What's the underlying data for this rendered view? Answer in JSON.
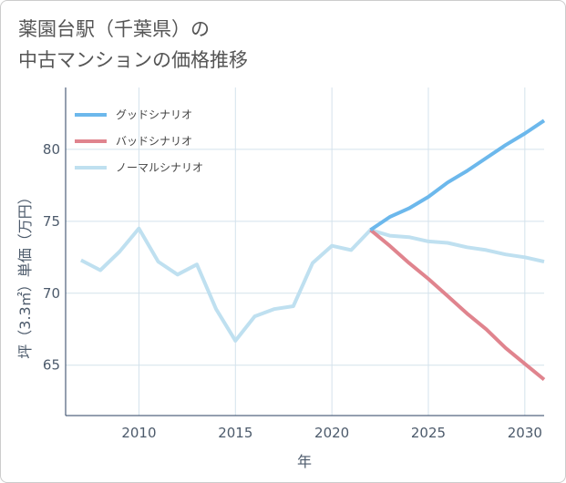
{
  "title": {
    "line1": "薬園台駅（千葉県）の",
    "line2": "中古マンションの価格推移"
  },
  "chart_data": {
    "type": "line",
    "title": "薬園台駅（千葉県）の中古マンションの価格推移",
    "xlabel": "年",
    "ylabel": "坪（3.3㎡）単価（万円）",
    "xlim": [
      2006.2,
      2031
    ],
    "ylim": [
      61.5,
      84.3
    ],
    "xticks": [
      2010,
      2015,
      2020,
      2025,
      2030
    ],
    "yticks": [
      65,
      70,
      75,
      80
    ],
    "grid": true,
    "legend_position": "top-left",
    "series": [
      {
        "name": "グッドシナリオ",
        "color": "#6cb8ec",
        "x": [
          2022,
          2023,
          2024,
          2025,
          2026,
          2027,
          2028,
          2029,
          2030,
          2031
        ],
        "values": [
          74.4,
          75.3,
          75.9,
          76.7,
          77.7,
          78.5,
          79.4,
          80.3,
          81.1,
          82.0
        ]
      },
      {
        "name": "バッドシナリオ",
        "color": "#e0848e",
        "x": [
          2022,
          2023,
          2024,
          2025,
          2026,
          2027,
          2028,
          2029,
          2030,
          2031
        ],
        "values": [
          74.4,
          73.3,
          72.1,
          71.0,
          69.8,
          68.6,
          67.5,
          66.2,
          65.1,
          64.0
        ]
      },
      {
        "name": "ノーマルシナリオ",
        "color": "#bfe0f0",
        "x": [
          2007,
          2008,
          2009,
          2010,
          2011,
          2012,
          2013,
          2014,
          2015,
          2016,
          2017,
          2018,
          2019,
          2020,
          2021,
          2022,
          2023,
          2024,
          2025,
          2026,
          2027,
          2028,
          2029,
          2030,
          2031
        ],
        "values": [
          72.3,
          71.6,
          72.9,
          74.5,
          72.2,
          71.3,
          72.0,
          68.9,
          66.7,
          68.4,
          68.9,
          69.1,
          72.1,
          73.3,
          73.0,
          74.4,
          74.0,
          73.9,
          73.6,
          73.5,
          73.2,
          73.0,
          72.7,
          72.5,
          72.2
        ]
      }
    ]
  }
}
